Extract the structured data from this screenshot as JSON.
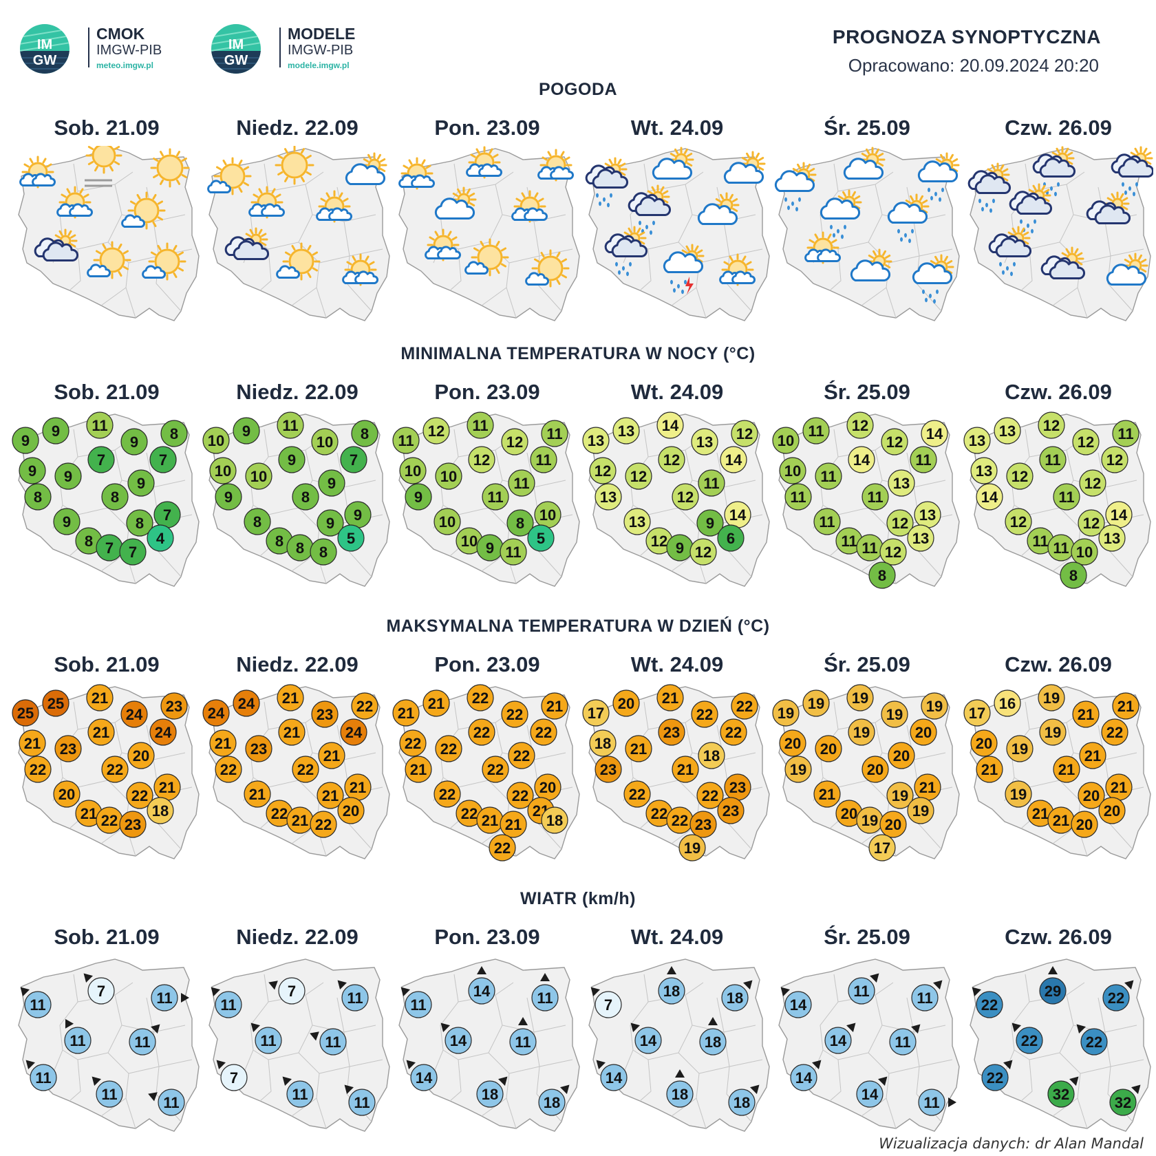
{
  "logos": [
    {
      "name": "CMOK",
      "org": "IMGW-PIB",
      "url": "meteo.imgw.pl",
      "badge_top": "IM",
      "badge_bottom": "GW"
    },
    {
      "name": "MODELE",
      "org": "IMGW-PIB",
      "url": "modele.imgw.pl",
      "badge_top": "IM",
      "badge_bottom": "GW"
    }
  ],
  "header": {
    "title": "PROGNOZA SYNOPTYCZNA",
    "date": "Opracowano: 20.09.2024 20:20"
  },
  "days": [
    "Sob. 21.09",
    "Niedz. 22.09",
    "Pon. 23.09",
    "Wt. 24.09",
    "Śr. 25.09",
    "Czw. 26.09"
  ],
  "sections": {
    "weather": "POGODA",
    "tmin": "MINIMALNA TEMPERATURA W NOCY (°C)",
    "tmax": "MAKSYMALNA TEMPERATURA W DZIEŃ (°C)",
    "wind": "WIATR (km/h)"
  },
  "weather_icons": [
    [
      "partly-cloudy-sun-icon",
      "fog-sun-icon",
      "sun-icon",
      "partly-cloudy-sun-icon",
      "sun-cloud-icon",
      "cloudy-dark-icon",
      "sun-cloud-icon",
      "sun-cloud-icon"
    ],
    [
      "sun-cloud-icon",
      "sun-icon",
      "cloud-icon",
      "partly-cloudy-sun-icon",
      "partly-cloudy-sun-icon",
      "cloudy-dark-icon",
      "sun-cloud-icon",
      "partly-cloudy-sun-icon"
    ],
    [
      "partly-cloudy-sun-icon",
      "partly-cloudy-sun-icon",
      "partly-cloudy-sun-icon",
      "cloud-icon",
      "partly-cloudy-sun-icon",
      "partly-cloudy-sun-icon",
      "sun-cloud-icon",
      "sun-cloud-icon"
    ],
    [
      "rain-dark-icon",
      "cloud-icon",
      "cloud-icon",
      "rain-dark-icon",
      "cloud-icon",
      "rain-dark-icon",
      "thunderstorm-icon",
      "partly-cloudy-sun-icon"
    ],
    [
      "rain-icon",
      "cloud-icon",
      "rain-icon",
      "rain-icon",
      "rain-icon",
      "partly-cloudy-sun-icon",
      "cloud-icon",
      "rain-icon"
    ],
    [
      "rain-dark-icon",
      "rain-dark-icon",
      "rain-dark-icon",
      "rain-dark-icon",
      "cloudy-dark-icon",
      "rain-dark-icon",
      "cloudy-dark-icon",
      "cloud-icon"
    ]
  ],
  "tmin": [
    [
      9,
      9,
      11,
      9,
      8,
      7,
      7,
      9,
      9,
      9,
      8,
      9,
      8,
      8,
      7,
      8,
      7,
      7,
      4
    ],
    [
      10,
      9,
      11,
      10,
      8,
      7,
      9,
      10,
      10,
      9,
      9,
      8,
      8,
      9,
      9,
      8,
      8,
      8,
      5
    ],
    [
      11,
      12,
      11,
      12,
      11,
      11,
      12,
      10,
      10,
      11,
      9,
      10,
      11,
      8,
      10,
      10,
      9,
      11,
      5
    ],
    [
      13,
      13,
      14,
      13,
      12,
      14,
      12,
      12,
      12,
      11,
      13,
      13,
      12,
      9,
      14,
      12,
      9,
      12,
      6
    ],
    [
      10,
      11,
      12,
      12,
      14,
      11,
      14,
      10,
      11,
      13,
      11,
      11,
      11,
      12,
      13,
      11,
      11,
      12,
      13,
      8
    ],
    [
      13,
      13,
      12,
      12,
      11,
      12,
      11,
      13,
      12,
      12,
      14,
      12,
      11,
      12,
      14,
      11,
      11,
      10,
      13,
      8
    ]
  ],
  "tmax": [
    [
      25,
      25,
      21,
      24,
      23,
      24,
      21,
      21,
      23,
      20,
      22,
      20,
      22,
      22,
      21,
      21,
      22,
      23,
      18
    ],
    [
      24,
      24,
      21,
      23,
      22,
      24,
      21,
      21,
      23,
      21,
      22,
      21,
      22,
      21,
      21,
      22,
      21,
      22,
      20
    ],
    [
      21,
      21,
      22,
      22,
      21,
      22,
      22,
      22,
      22,
      22,
      21,
      22,
      22,
      22,
      20,
      22,
      21,
      21,
      21,
      22,
      18
    ],
    [
      17,
      20,
      21,
      22,
      22,
      22,
      23,
      18,
      21,
      18,
      23,
      22,
      21,
      22,
      23,
      22,
      22,
      23,
      23,
      19
    ],
    [
      19,
      19,
      19,
      19,
      19,
      20,
      19,
      20,
      20,
      20,
      19,
      21,
      20,
      19,
      21,
      20,
      19,
      20,
      19,
      17
    ],
    [
      17,
      16,
      19,
      21,
      21,
      22,
      19,
      20,
      19,
      21,
      21,
      19,
      21,
      20,
      21,
      21,
      21,
      20,
      20
    ]
  ],
  "wind": [
    [
      11,
      7,
      11,
      11,
      11,
      11,
      11,
      11
    ],
    [
      11,
      7,
      11,
      11,
      11,
      7,
      11,
      11
    ],
    [
      11,
      14,
      11,
      14,
      11,
      14,
      18,
      18
    ],
    [
      7,
      18,
      18,
      14,
      18,
      14,
      18,
      18
    ],
    [
      14,
      11,
      11,
      14,
      11,
      14,
      14,
      11
    ],
    [
      22,
      29,
      22,
      22,
      22,
      22,
      32,
      32
    ]
  ],
  "footer": "Wizualizacja danych: dr Alan Mandal"
}
